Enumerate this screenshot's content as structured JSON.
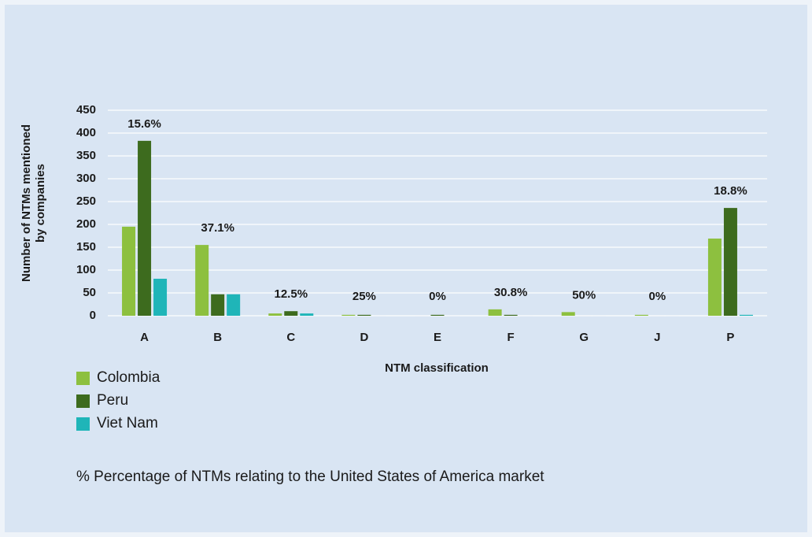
{
  "chart_data": {
    "type": "bar",
    "y_axis_label": [
      "Number of NTMs mentioned",
      "by companies"
    ],
    "x_axis_label": "NTM classification",
    "categories": [
      "A",
      "B",
      "C",
      "D",
      "E",
      "F",
      "G",
      "J",
      "P"
    ],
    "series": [
      {
        "name": "Colombia",
        "color": "#8dc03f",
        "values": [
          195,
          155,
          5,
          2,
          0,
          14,
          8,
          2,
          169
        ]
      },
      {
        "name": "Peru",
        "color": "#3d6b1e",
        "values": [
          383,
          47,
          10,
          2,
          2,
          2,
          0,
          0,
          236
        ]
      },
      {
        "name": "Viet Nam",
        "color": "#1fb5b8",
        "values": [
          81,
          47,
          5,
          0,
          0,
          0,
          0,
          0,
          2
        ]
      }
    ],
    "percent_labels": [
      "15.6%",
      "37.1%",
      "12.5%",
      "25%",
      "0%",
      "30.8%",
      "50%",
      "0%",
      "18.8%"
    ],
    "note": "% Percentage of NTMs relating to the United States of America market",
    "ylim": [
      0,
      450
    ],
    "yticks": [
      0,
      50,
      100,
      150,
      200,
      250,
      300,
      350,
      400,
      450
    ],
    "grid": true
  }
}
